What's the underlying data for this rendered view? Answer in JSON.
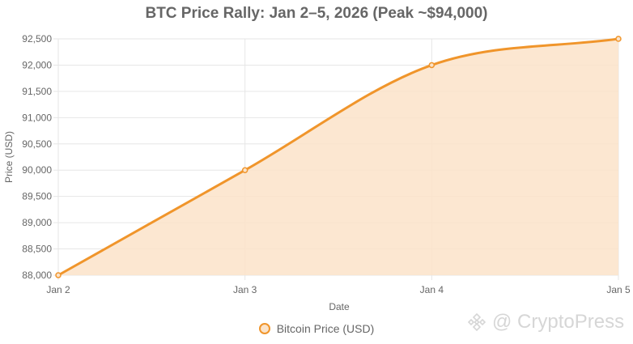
{
  "chart_data": {
    "type": "area",
    "title": "BTC Price Rally: Jan 2–5, 2026 (Peak ~$94,000)",
    "xlabel": "Date",
    "ylabel": "Price (USD)",
    "categories": [
      "Jan 2",
      "Jan 3",
      "Jan 4",
      "Jan 5"
    ],
    "series": [
      {
        "name": "Bitcoin Price (USD)",
        "values": [
          88000,
          90000,
          92000,
          92500
        ]
      }
    ],
    "ylim": [
      88000,
      92500
    ],
    "yticks": [
      "88,000",
      "88,500",
      "89,000",
      "89,500",
      "90,000",
      "90,500",
      "91,000",
      "91,500",
      "92,000",
      "92,500"
    ],
    "grid": true,
    "legend": "bottom-center",
    "line_color": "#f0952b",
    "fill_color": "#fbe3c9"
  },
  "watermark": {
    "text": "@ CryptoPress"
  }
}
